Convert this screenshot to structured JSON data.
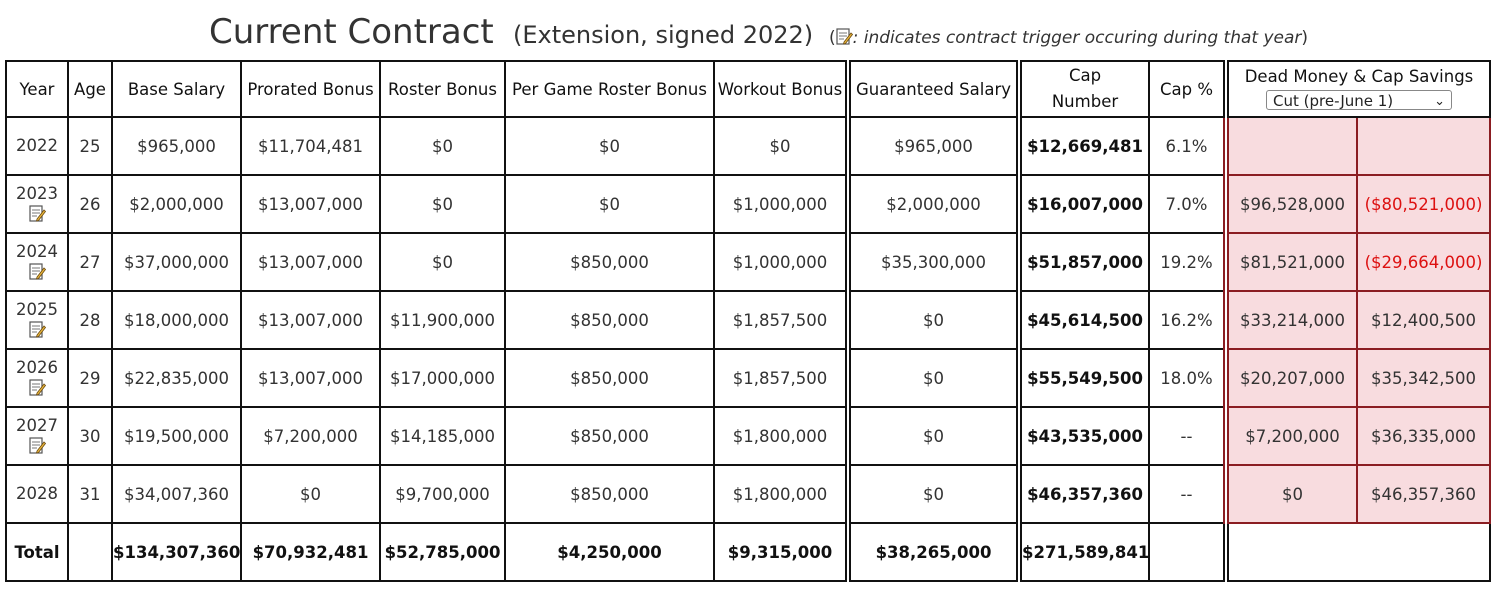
{
  "title": {
    "main": "Current Contract",
    "sub": "(Extension, signed 2022)",
    "note_paren_open": "(",
    "note_text": ": indicates contract trigger occuring during that year",
    "note_paren_close": ")"
  },
  "headers": {
    "year": "Year",
    "age": "Age",
    "base_salary": "Base Salary",
    "prorated_bonus": "Prorated Bonus",
    "roster_bonus": "Roster Bonus",
    "per_game_roster_bonus": "Per Game Roster Bonus",
    "workout_bonus": "Workout Bonus",
    "guaranteed_salary": "Guaranteed Salary",
    "cap_number_line1": "Cap",
    "cap_number_line2": "Number",
    "cap_pct": "Cap %",
    "dead_money": "Dead Money & Cap Savings",
    "dead_money_select_value": "Cut (pre-June 1)"
  },
  "rows": [
    {
      "year": "2022",
      "trigger": false,
      "age": "25",
      "base": "$965,000",
      "prorated": "$11,704,481",
      "roster": "$0",
      "per_game": "$0",
      "workout": "$0",
      "guaranteed": "$965,000",
      "cap": "$12,669,481",
      "cap_pct": "6.1%",
      "dead": "",
      "savings": ""
    },
    {
      "year": "2023",
      "trigger": true,
      "age": "26",
      "base": "$2,000,000",
      "prorated": "$13,007,000",
      "roster": "$0",
      "per_game": "$0",
      "workout": "$1,000,000",
      "guaranteed": "$2,000,000",
      "cap": "$16,007,000",
      "cap_pct": "7.0%",
      "dead": "$96,528,000",
      "savings": "($80,521,000)"
    },
    {
      "year": "2024",
      "trigger": true,
      "age": "27",
      "base": "$37,000,000",
      "prorated": "$13,007,000",
      "roster": "$0",
      "per_game": "$850,000",
      "workout": "$1,000,000",
      "guaranteed": "$35,300,000",
      "cap": "$51,857,000",
      "cap_pct": "19.2%",
      "dead": "$81,521,000",
      "savings": "($29,664,000)"
    },
    {
      "year": "2025",
      "trigger": true,
      "age": "28",
      "base": "$18,000,000",
      "prorated": "$13,007,000",
      "roster": "$11,900,000",
      "per_game": "$850,000",
      "workout": "$1,857,500",
      "guaranteed": "$0",
      "cap": "$45,614,500",
      "cap_pct": "16.2%",
      "dead": "$33,214,000",
      "savings": "$12,400,500"
    },
    {
      "year": "2026",
      "trigger": true,
      "age": "29",
      "base": "$22,835,000",
      "prorated": "$13,007,000",
      "roster": "$17,000,000",
      "per_game": "$850,000",
      "workout": "$1,857,500",
      "guaranteed": "$0",
      "cap": "$55,549,500",
      "cap_pct": "18.0%",
      "dead": "$20,207,000",
      "savings": "$35,342,500"
    },
    {
      "year": "2027",
      "trigger": true,
      "age": "30",
      "base": "$19,500,000",
      "prorated": "$7,200,000",
      "roster": "$14,185,000",
      "per_game": "$850,000",
      "workout": "$1,800,000",
      "guaranteed": "$0",
      "cap": "$43,535,000",
      "cap_pct": "--",
      "dead": "$7,200,000",
      "savings": "$36,335,000"
    },
    {
      "year": "2028",
      "trigger": false,
      "age": "31",
      "base": "$34,007,360",
      "prorated": "$0",
      "roster": "$9,700,000",
      "per_game": "$850,000",
      "workout": "$1,800,000",
      "guaranteed": "$0",
      "cap": "$46,357,360",
      "cap_pct": "--",
      "dead": "$0",
      "savings": "$46,357,360"
    }
  ],
  "totals": {
    "label": "Total",
    "base": "$134,307,360",
    "prorated": "$70,932,481",
    "roster": "$52,785,000",
    "per_game": "$4,250,000",
    "workout": "$9,315,000",
    "guaranteed": "$38,265,000",
    "cap": "$271,589,841"
  },
  "colors": {
    "dead_money_bg": "#f8dcdf",
    "dead_money_border": "#8b1d22",
    "negative_text": "#dd1111"
  }
}
